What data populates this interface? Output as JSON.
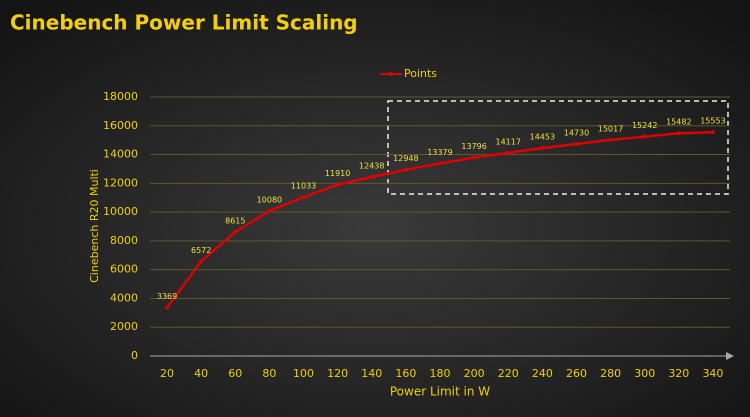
{
  "chart_data": {
    "type": "line",
    "title": "Cinebench Power Limit Scaling",
    "x_label": "Power Limit in W",
    "y_label": "Cinebench R20 Multi",
    "categories": [
      "20",
      "40",
      "60",
      "80",
      "100",
      "120",
      "140",
      "160",
      "180",
      "200",
      "220",
      "240",
      "260",
      "280",
      "300",
      "320",
      "340"
    ],
    "series": [
      {
        "name": "Points",
        "color": "#e00000",
        "values": [
          3369,
          6572,
          8615,
          10080,
          11033,
          11910,
          12438,
          12948,
          13379,
          13796,
          14117,
          14453,
          14730,
          15017,
          15242,
          15482,
          15553
        ]
      }
    ],
    "ylim": [
      0,
      18000
    ],
    "yticks": [
      0,
      2000,
      4000,
      6000,
      8000,
      10000,
      12000,
      14000,
      16000,
      18000
    ],
    "grid": true,
    "legend": "top"
  }
}
